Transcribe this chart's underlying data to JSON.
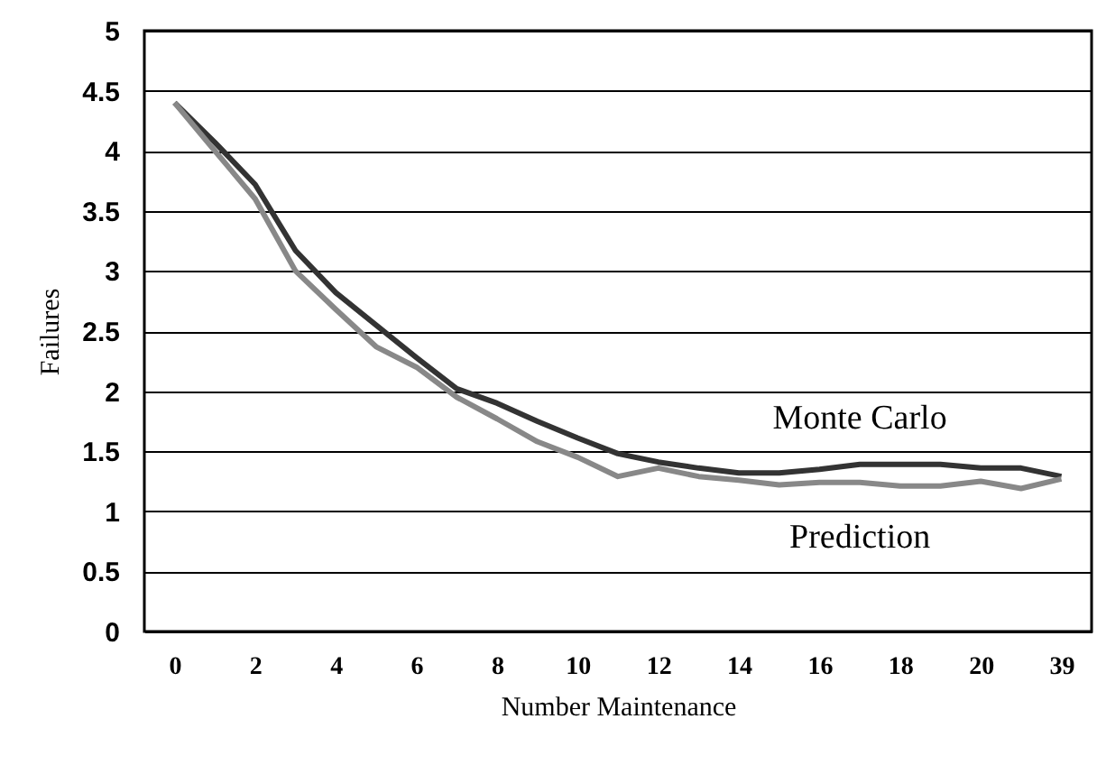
{
  "chart_data": {
    "type": "line",
    "xlabel": "Number Maintenance",
    "ylabel": "Failures",
    "categories": [
      "0",
      null,
      "2",
      null,
      "4",
      null,
      "6",
      null,
      "8",
      null,
      "10",
      null,
      "12",
      null,
      "14",
      null,
      "16",
      null,
      "18",
      null,
      "20",
      null,
      "39"
    ],
    "series": [
      {
        "name": "Monte Carlo",
        "color": "#333333",
        "values": [
          4.4,
          4.07,
          3.72,
          3.17,
          2.82,
          2.55,
          2.28,
          2.02,
          1.9,
          1.75,
          1.61,
          1.48,
          1.41,
          1.36,
          1.32,
          1.32,
          1.35,
          1.39,
          1.39,
          1.39,
          1.36,
          1.36,
          1.29
        ]
      },
      {
        "name": "Prediction",
        "color": "#888888",
        "values": [
          4.4,
          4.0,
          3.6,
          3.0,
          2.68,
          2.37,
          2.2,
          1.95,
          1.77,
          1.58,
          1.45,
          1.29,
          1.36,
          1.29,
          1.26,
          1.22,
          1.24,
          1.24,
          1.21,
          1.21,
          1.25,
          1.19,
          1.27
        ]
      }
    ],
    "ylim": [
      0,
      5
    ],
    "yticks": [
      0,
      0.5,
      1,
      1.5,
      2,
      2.5,
      3,
      3.5,
      4,
      4.5,
      5
    ],
    "grid": "y",
    "marker": "none",
    "line_style": "solid"
  }
}
